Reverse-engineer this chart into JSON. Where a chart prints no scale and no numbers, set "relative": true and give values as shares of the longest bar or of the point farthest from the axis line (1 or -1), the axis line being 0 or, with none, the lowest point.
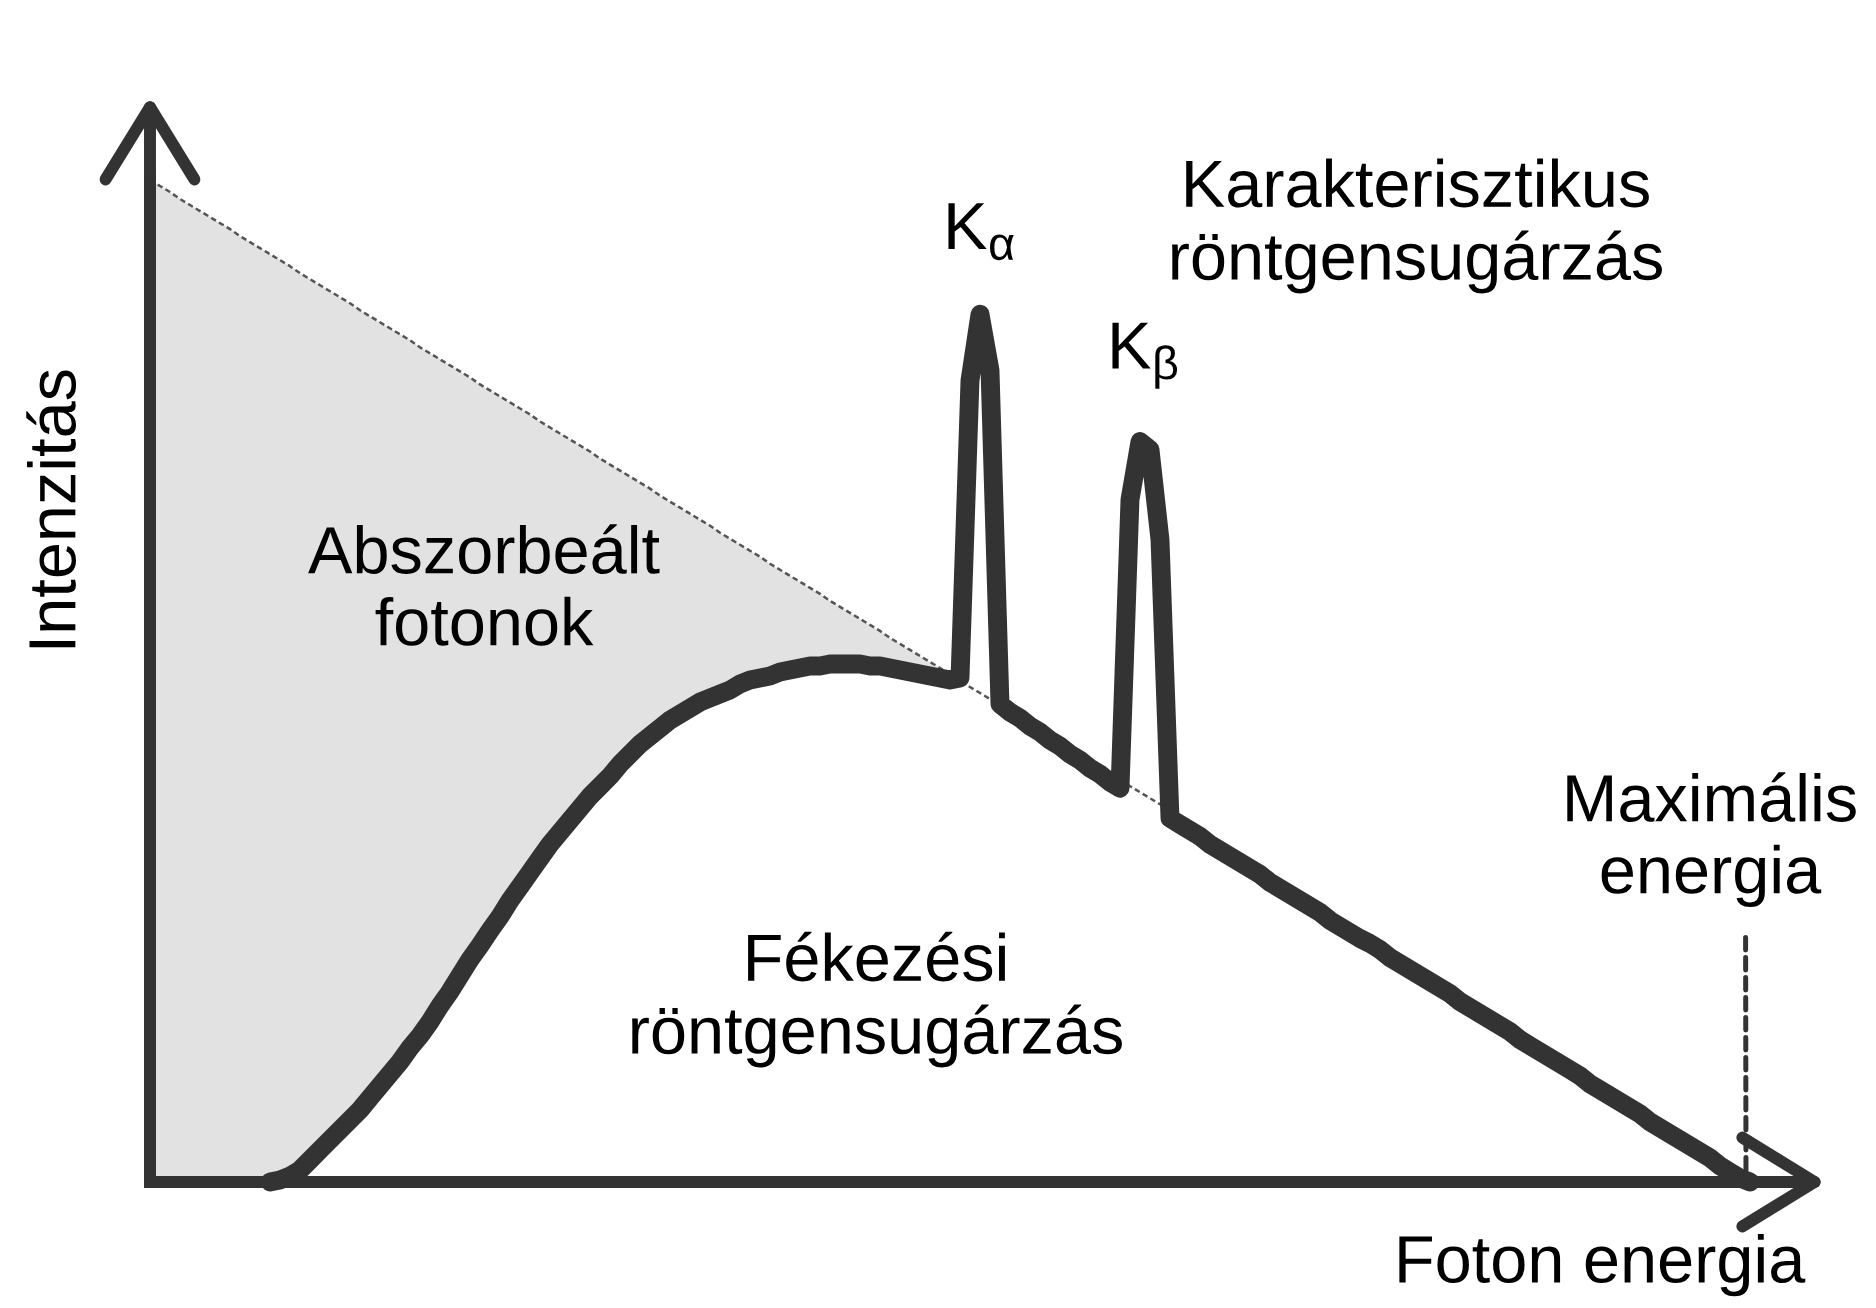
{
  "chart_data": {
    "type": "line",
    "relative": true,
    "xlabel": "Foton energia",
    "ylabel": "Intenzitás",
    "categories": [
      null,
      null,
      null,
      null,
      null,
      null,
      null,
      null,
      null,
      null,
      null,
      null,
      null,
      null,
      null,
      null,
      null,
      null,
      null,
      null,
      null,
      null,
      null,
      null,
      null,
      null,
      null,
      null,
      null,
      null,
      null,
      null,
      null,
      null,
      null,
      null,
      null,
      null,
      null,
      null,
      null,
      null,
      null,
      null,
      null,
      null,
      null,
      null,
      null,
      null,
      null,
      null,
      null,
      null,
      null,
      null,
      null,
      null,
      null,
      null,
      null,
      null,
      null,
      null,
      null,
      null,
      null,
      null,
      null,
      null,
      null,
      null,
      null,
      null,
      null,
      null,
      null,
      null,
      null,
      null,
      null,
      null,
      null,
      null,
      null,
      null,
      null,
      null,
      null,
      null,
      null,
      null,
      null,
      null,
      null,
      null,
      null,
      null,
      null,
      null,
      null,
      null,
      null,
      null,
      null,
      null,
      null,
      null,
      null,
      null,
      null,
      null,
      null,
      null,
      null,
      null,
      null,
      null,
      null,
      null,
      null,
      null,
      null,
      null,
      null,
      null,
      null,
      null,
      null,
      null,
      null,
      null,
      null,
      null,
      null,
      null,
      null,
      null,
      null,
      null,
      null,
      null,
      null,
      null,
      null,
      null,
      null,
      null,
      null,
      null,
      null,
      null,
      null,
      null,
      null,
      null,
      null,
      null,
      null,
      null,
      null
    ],
    "series": [
      {
        "color": "#555555",
        "line_style": "dashed",
        "values": [
          1,
          0.994,
          0.988,
          0.981,
          0.975,
          0.969,
          0.963,
          0.957,
          0.951,
          0.944,
          0.938,
          0.932,
          0.926,
          0.92,
          0.914,
          0.907,
          0.901,
          0.895,
          0.889,
          0.883,
          0.877,
          0.87,
          0.864,
          0.858,
          0.852,
          0.846,
          0.84,
          0.833,
          0.827,
          0.821,
          0.815,
          0.809,
          0.803,
          0.796,
          0.79,
          0.784,
          0.778,
          0.772,
          0.766,
          0.759,
          0.753,
          0.747,
          0.741,
          0.735,
          0.729,
          0.722,
          0.716,
          0.71,
          0.704,
          0.698,
          0.692,
          0.685,
          0.679,
          0.673,
          0.667,
          0.661,
          0.655,
          0.648,
          0.642,
          0.636,
          0.63,
          0.624,
          0.617,
          0.611,
          0.605,
          0.599,
          0.593,
          0.587,
          0.58,
          0.574,
          0.568,
          0.562,
          0.556,
          0.55,
          0.543,
          0.537,
          0.531,
          0.525,
          0.519,
          0.513,
          0.506,
          0.5,
          0.494,
          0.488,
          0.482,
          null,
          null,
          null,
          null,
          null,
          null,
          null,
          null,
          null,
          null,
          null,
          null,
          0.402,
          0.395,
          0.389,
          0.383,
          0.377,
          0.371,
          null,
          null,
          null,
          null,
          null,
          null,
          null,
          null,
          null,
          null,
          null,
          null,
          null,
          null,
          null,
          null,
          null,
          null,
          null,
          null,
          null,
          null,
          null,
          null,
          null,
          null,
          null,
          null,
          null,
          null,
          null,
          null,
          null,
          null,
          null,
          null,
          null,
          null,
          null,
          null,
          null,
          null,
          null,
          null,
          null,
          null,
          null,
          null,
          null,
          null,
          null,
          null,
          null,
          null,
          null,
          null,
          null,
          null
        ],
        "lower": [
          0,
          0,
          0,
          0,
          0,
          0,
          0,
          0,
          0,
          0,
          0,
          0,
          0,
          0.002,
          0.006,
          0.012,
          0.022,
          0.032,
          0.042,
          0.052,
          0.062,
          0.072,
          0.084,
          0.096,
          0.108,
          0.12,
          0.134,
          0.146,
          0.16,
          0.176,
          0.19,
          0.206,
          0.222,
          0.236,
          0.251,
          0.265,
          0.281,
          0.295,
          0.309,
          0.323,
          0.337,
          0.349,
          0.361,
          0.373,
          0.385,
          0.395,
          0.405,
          0.417,
          0.427,
          0.437,
          0.445,
          0.453,
          0.461,
          0.467,
          0.473,
          0.479,
          0.483,
          0.487,
          0.491,
          0.497,
          0.501,
          0.503,
          0.505,
          0.509,
          0.511,
          0.513,
          0.515,
          0.515,
          0.517,
          0.517,
          0.517,
          0.517,
          0.515,
          0.515,
          0.513,
          0.511,
          0.509,
          0.507,
          0.505,
          0.503,
          0.501,
          null,
          null,
          null,
          null,
          null,
          null,
          null,
          null,
          null,
          null,
          null,
          null,
          null,
          null,
          null,
          null,
          null,
          null,
          null,
          null,
          null,
          null,
          null,
          null,
          null,
          null,
          null,
          null,
          null,
          null,
          null,
          null,
          null,
          null,
          null,
          null,
          null,
          null,
          null,
          null,
          null,
          null,
          null,
          null,
          null,
          null,
          null,
          null,
          null,
          null,
          null,
          null,
          null,
          null,
          null,
          null,
          null,
          null,
          null,
          null,
          null,
          null,
          null,
          null,
          null,
          null,
          null,
          null,
          null,
          null,
          null,
          null,
          null,
          null,
          null,
          null,
          null,
          null,
          null,
          null
        ],
        "upper": [
          1,
          0.994,
          0.988,
          0.981,
          0.975,
          0.969,
          0.963,
          0.957,
          0.951,
          0.944,
          0.938,
          0.932,
          0.926,
          0.92,
          0.914,
          0.907,
          0.901,
          0.895,
          0.889,
          0.883,
          0.877,
          0.87,
          0.864,
          0.858,
          0.852,
          0.846,
          0.84,
          0.833,
          0.827,
          0.821,
          0.815,
          0.809,
          0.803,
          0.796,
          0.79,
          0.784,
          0.778,
          0.772,
          0.766,
          0.759,
          0.753,
          0.747,
          0.741,
          0.735,
          0.729,
          0.722,
          0.716,
          0.71,
          0.704,
          0.698,
          0.692,
          0.685,
          0.679,
          0.673,
          0.667,
          0.661,
          0.655,
          0.648,
          0.642,
          0.636,
          0.63,
          0.624,
          0.617,
          0.611,
          0.605,
          0.599,
          0.593,
          0.587,
          0.58,
          0.574,
          0.568,
          0.562,
          0.556,
          0.55,
          0.543,
          0.537,
          0.531,
          0.525,
          0.519,
          0.513,
          0.506,
          null,
          null,
          null,
          null,
          null,
          null,
          null,
          null,
          null,
          null,
          null,
          null,
          null,
          null,
          null,
          null,
          null,
          null,
          null,
          null,
          null,
          null,
          null,
          null,
          null,
          null,
          null,
          null,
          null,
          null,
          null,
          null,
          null,
          null,
          null,
          null,
          null,
          null,
          null,
          null,
          null,
          null,
          null,
          null,
          null,
          null,
          null,
          null,
          null,
          null,
          null,
          null,
          null,
          null,
          null,
          null,
          null,
          null,
          null,
          null,
          null,
          null,
          null,
          null,
          null,
          null,
          null,
          null,
          null,
          null,
          null,
          null,
          null,
          null,
          null,
          null,
          null,
          null,
          null,
          null
        ]
      },
      {
        "color": "#333333",
        "values": [
          null,
          null,
          null,
          null,
          null,
          null,
          null,
          null,
          null,
          null,
          null,
          null,
          0,
          0.002,
          0.006,
          0.012,
          0.022,
          0.032,
          0.042,
          0.052,
          0.062,
          0.072,
          0.084,
          0.096,
          0.108,
          0.12,
          0.134,
          0.146,
          0.16,
          0.176,
          0.19,
          0.206,
          0.222,
          0.236,
          0.251,
          0.265,
          0.281,
          0.295,
          0.309,
          0.323,
          0.337,
          0.349,
          0.361,
          0.373,
          0.385,
          0.395,
          0.405,
          0.417,
          0.427,
          0.437,
          0.445,
          0.453,
          0.461,
          0.467,
          0.473,
          0.479,
          0.483,
          0.487,
          0.491,
          0.497,
          0.501,
          0.503,
          0.505,
          0.509,
          0.511,
          0.513,
          0.515,
          0.515,
          0.517,
          0.517,
          0.517,
          0.517,
          0.515,
          0.515,
          0.513,
          0.511,
          0.509,
          0.507,
          0.505,
          0.503,
          0.501,
          0.503,
          0.8,
          0.866,
          0.81,
          0.477,
          0.469,
          0.463,
          0.455,
          0.449,
          0.441,
          0.435,
          0.427,
          0.421,
          0.413,
          0.407,
          0.399,
          0.393,
          0.681,
          0.739,
          0.731,
          0.641,
          0.363,
          0.357,
          0.351,
          0.345,
          0.337,
          0.331,
          0.325,
          0.319,
          0.313,
          0.307,
          0.299,
          0.293,
          0.287,
          0.281,
          0.275,
          0.269,
          0.261,
          0.255,
          0.249,
          0.243,
          0.238,
          0.232,
          0.224,
          0.218,
          0.212,
          0.206,
          0.2,
          0.194,
          0.188,
          0.18,
          0.174,
          0.168,
          0.162,
          0.156,
          0.15,
          0.142,
          0.136,
          0.13,
          0.124,
          0.118,
          0.112,
          0.106,
          0.098,
          0.092,
          0.086,
          0.08,
          0.074,
          0.068,
          0.06,
          0.054,
          0.048,
          0.042,
          0.036,
          0.03,
          0.024,
          0.016,
          0.01,
          0.004,
          0
        ]
      }
    ],
    "annotations": [
      "Abszorbeált\nfotonok",
      "Fékezési\nröntgensugárzás",
      "K$_{α}$",
      "K$_{β}$",
      "Karakterisztikus\nröntgensugárzás",
      "Maximális\nenergia"
    ]
  }
}
